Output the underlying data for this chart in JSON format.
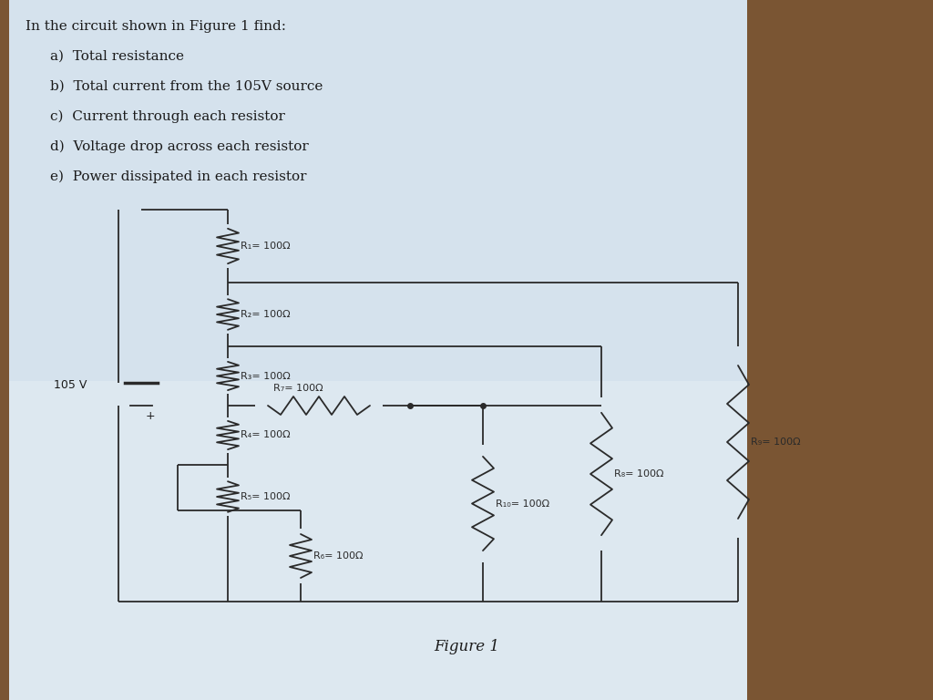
{
  "paper_color": "#dde5ed",
  "wood_color": "#7a5533",
  "line_color": "#2a2a2a",
  "text_color": "#1a1a1a",
  "title_text": "In the circuit shown in Figure 1 find:",
  "items": [
    "a)  Total resistance",
    "b)  Total current from the 105V source",
    "c)  Current through each resistor",
    "d)  Voltage drop across each resistor",
    "e)  Power dissipated in each resistor"
  ],
  "figure_label": "Figure 1",
  "voltage_label": "105 V",
  "plus_label": "+",
  "resistor_labels": [
    "R₁= 100Ω",
    "R₂= 100Ω",
    "R₃= 100Ω",
    "R₄= 100Ω",
    "R₅= 100Ω",
    "R₆= 100Ω",
    "R₇= 100Ω",
    "R₈= 100Ω",
    "R₉= 100Ω",
    "R₁₀= 100Ω"
  ]
}
